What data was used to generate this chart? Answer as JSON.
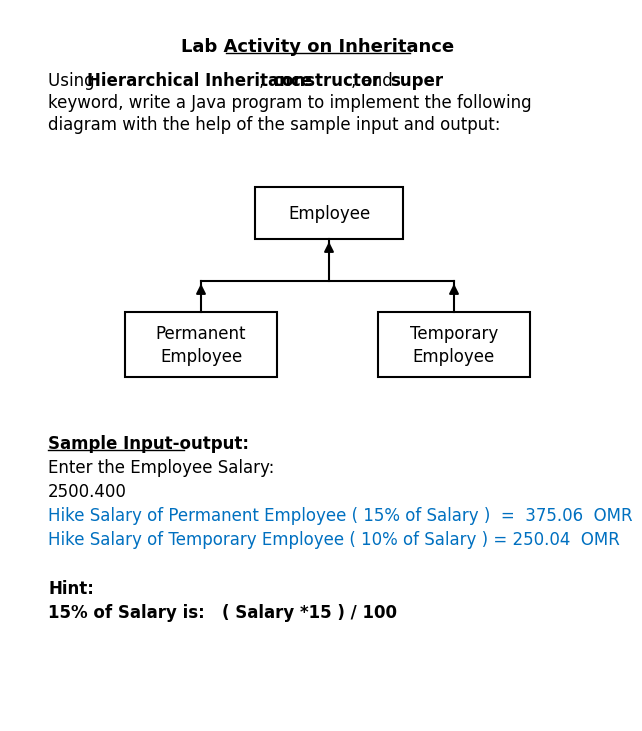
{
  "title": "Lab Activity on Inheritance",
  "intro_line2": "keyword, write a Java program to implement the following",
  "intro_line3": "diagram with the help of the sample input and output:",
  "box_employee": "Employee",
  "box_permanent": "Permanent\nEmployee",
  "box_temporary": "Temporary\nEmployee",
  "section_sample": "Sample Input-output:",
  "section_sample_underline": "Sample Input-output",
  "line_enter": "Enter the Employee Salary:",
  "line_value": "2500.400",
  "line_hike1": "Hike Salary of Permanent Employee ( 15% of Salary )  =  375.06  OMR",
  "line_hike2": "Hike Salary of Temporary Employee ( 10% of Salary ) = 250.04  OMR",
  "hint_label": "Hint:",
  "hint_formula": "15% of Salary is:   ( Salary *15 ) / 100",
  "bg_color": "#ffffff",
  "text_color": "#000000",
  "hike_color": "#0070c0",
  "box_color": "#000000"
}
